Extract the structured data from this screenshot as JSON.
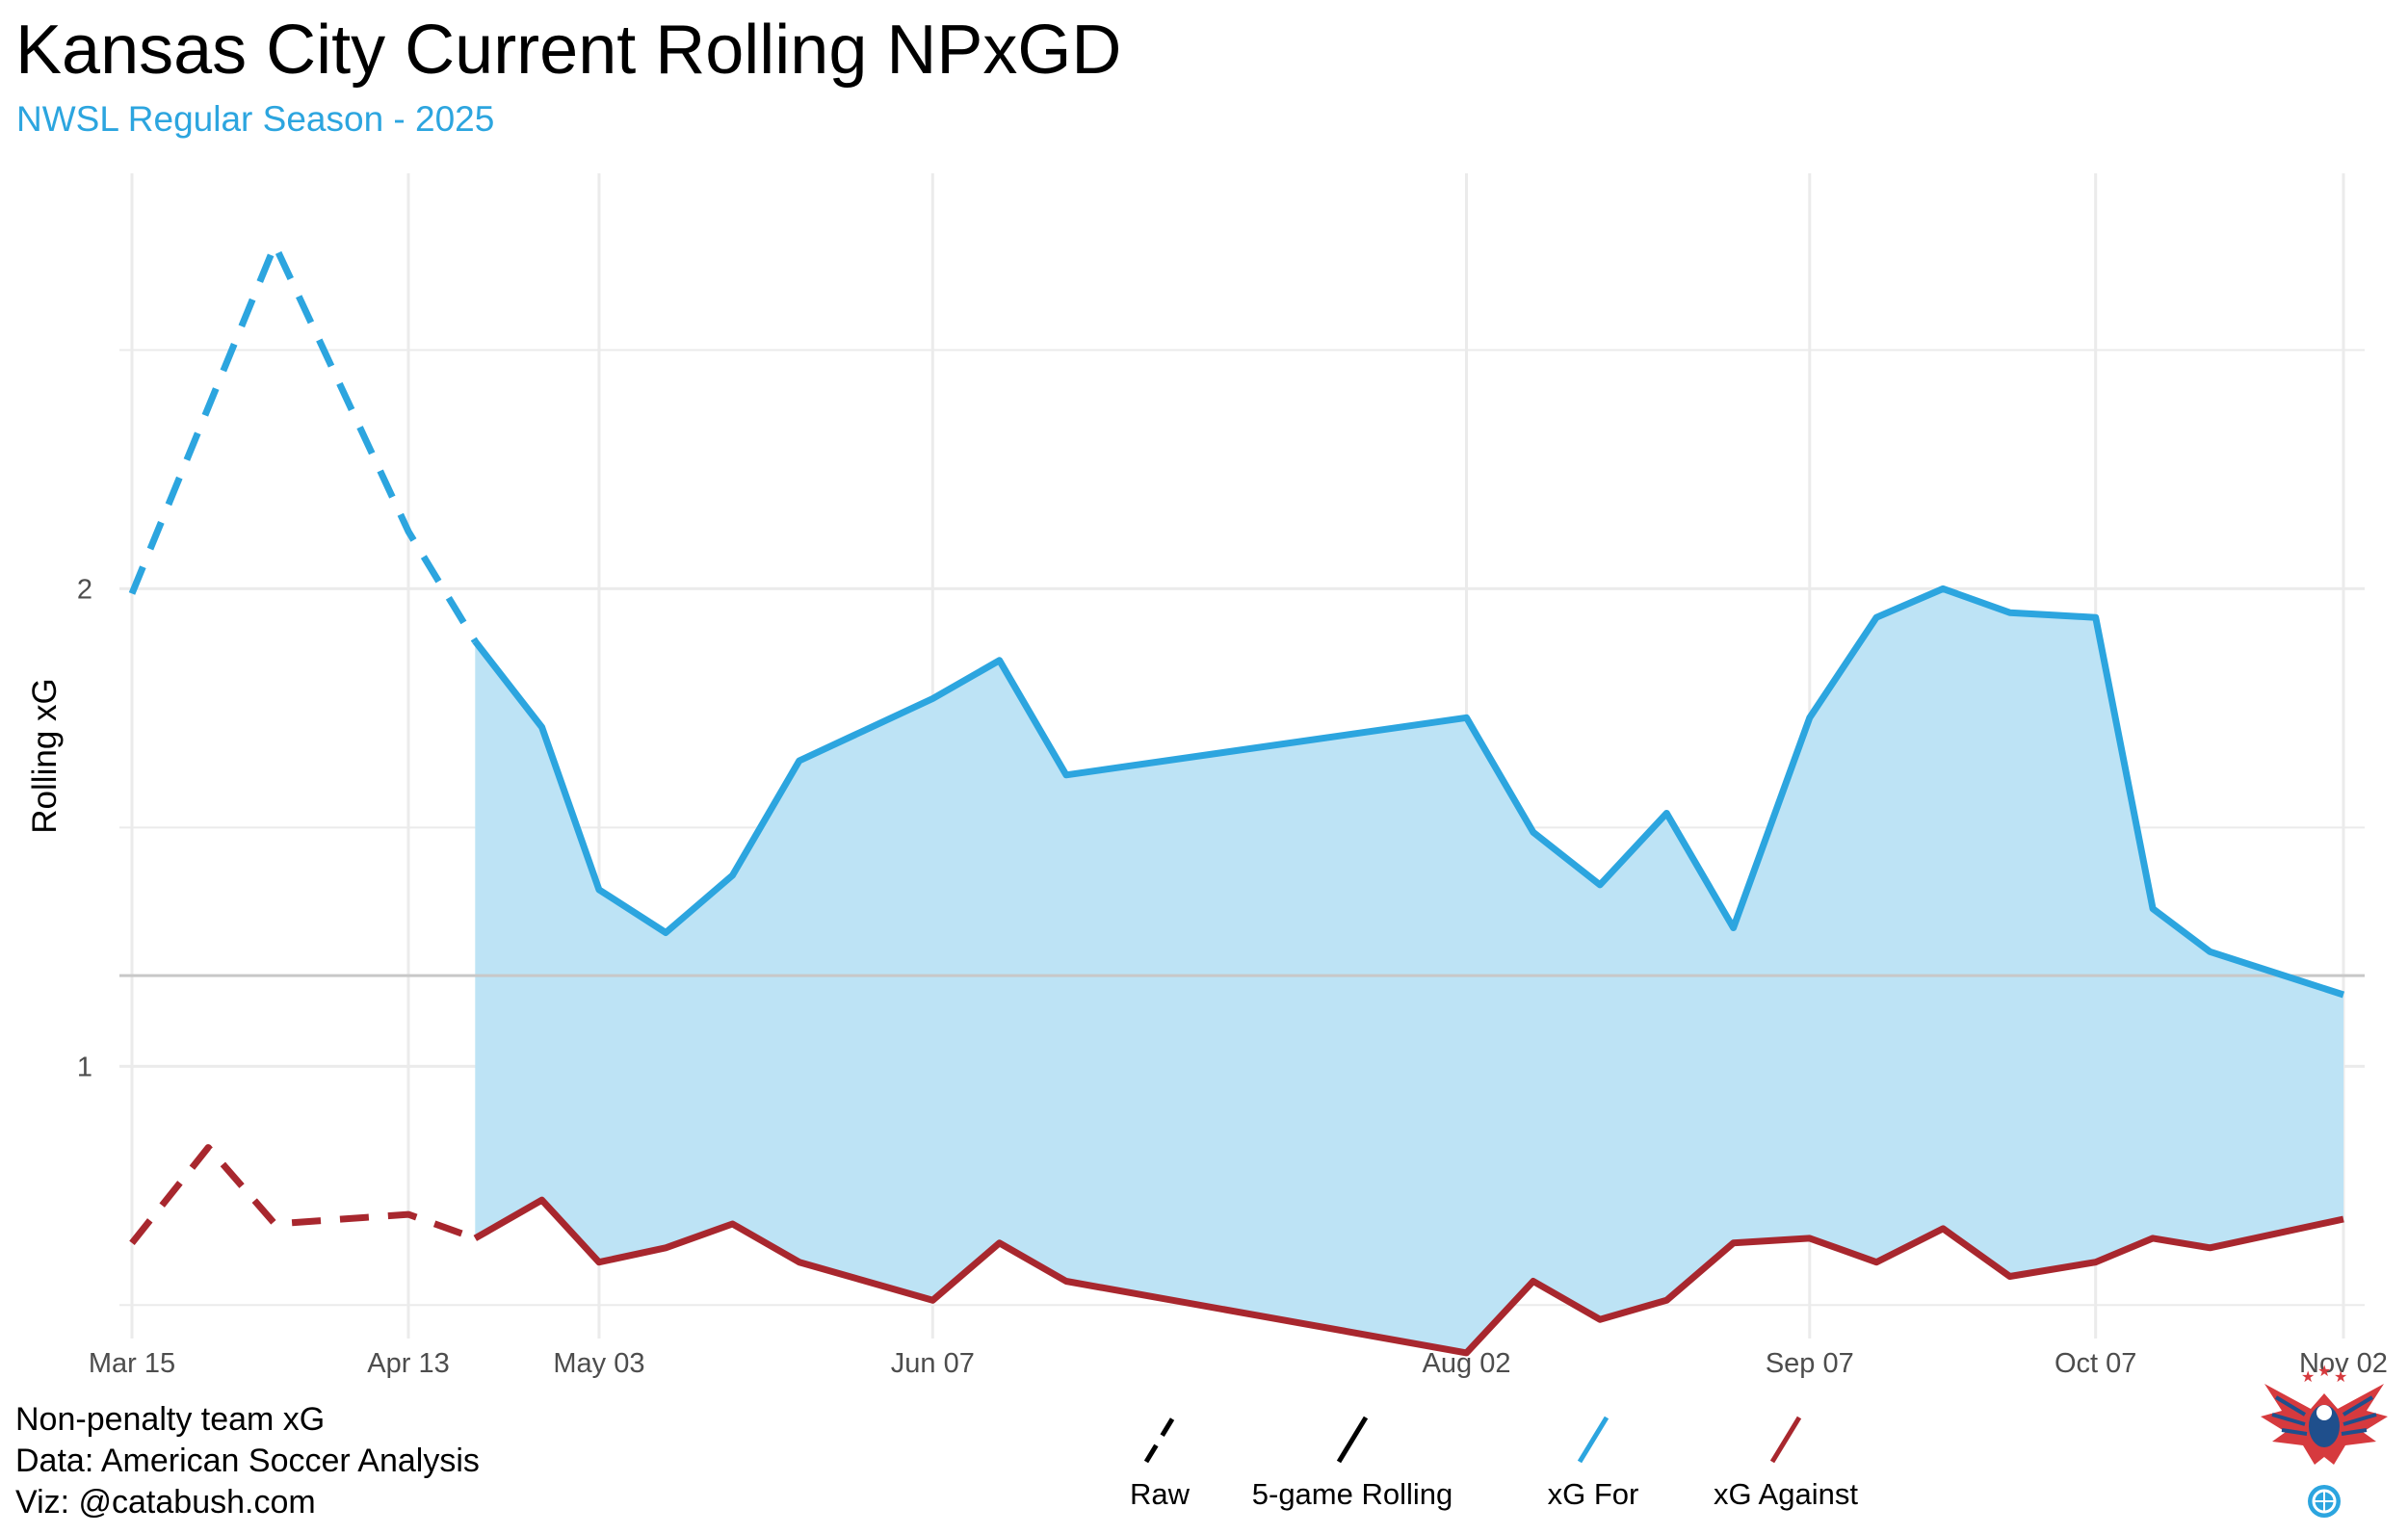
{
  "title": "Kansas City Current Rolling NPxGD",
  "subtitle": "NWSL Regular Season - 2025",
  "chart_data": {
    "type": "line",
    "title": "Kansas City Current Rolling NPxGD",
    "subtitle": "NWSL Regular Season - 2025",
    "xlabel": "",
    "ylabel": "Rolling xG",
    "ylim": [
      0.43,
      2.87
    ],
    "x_tick_labels": [
      "Mar 15",
      "Apr 13",
      "May 03",
      "Jun 07",
      "Aug 02",
      "Sep 07",
      "Oct 07",
      "Nov 02"
    ],
    "y_tick_labels": [
      "1",
      "2"
    ],
    "y_ticks": [
      1,
      2
    ],
    "y_minor_gridlines": [
      0.5,
      1.5,
      2.5
    ],
    "grid": true,
    "reference_line": 1.19,
    "x": [
      "2025-03-15",
      "2025-03-23",
      "2025-03-30",
      "2025-04-13",
      "2025-04-20",
      "2025-04-27",
      "2025-05-03",
      "2025-05-10",
      "2025-05-17",
      "2025-05-24",
      "2025-06-07",
      "2025-06-14",
      "2025-06-21",
      "2025-08-02",
      "2025-08-09",
      "2025-08-16",
      "2025-08-23",
      "2025-08-30",
      "2025-09-07",
      "2025-09-14",
      "2025-09-21",
      "2025-09-28",
      "2025-10-07",
      "2025-10-13",
      "2025-10-19",
      "2025-11-02"
    ],
    "series": [
      {
        "name": "xG For",
        "color": "#2ca5df",
        "values": [
          1.99,
          null,
          2.72,
          2.12,
          1.89,
          1.71,
          1.37,
          1.28,
          1.4,
          1.64,
          1.77,
          1.85,
          1.61,
          1.73,
          1.49,
          1.38,
          1.53,
          1.29,
          1.73,
          1.94,
          2.0,
          1.95,
          1.94,
          1.33,
          1.24,
          1.15
        ]
      },
      {
        "name": "xG Against",
        "color": "#a8272e",
        "values": [
          0.63,
          0.83,
          0.67,
          0.69,
          0.64,
          0.72,
          0.59,
          0.62,
          0.67,
          0.59,
          0.51,
          0.63,
          0.55,
          0.4,
          0.55,
          0.47,
          0.51,
          0.63,
          0.64,
          0.59,
          0.66,
          0.56,
          0.59,
          0.64,
          0.62,
          0.68
        ]
      }
    ],
    "rolling_start_index": 4,
    "fill_between": {
      "color": "#bde3f5",
      "from_index": 4
    },
    "legend": {
      "placement": "bottom",
      "entries": [
        {
          "label": "Raw",
          "style": "dashed",
          "color": "#000000"
        },
        {
          "label": "5-game Rolling",
          "style": "solid",
          "color": "#000000"
        },
        {
          "label": "xG For",
          "style": "solid",
          "color": "#2ca5df"
        },
        {
          "label": "xG Against",
          "style": "solid",
          "color": "#a8272e"
        }
      ]
    }
  },
  "caption": {
    "line1": "Non-penalty team xG",
    "line2": "Data: American Soccer Analysis",
    "line3": "Viz: @catabush.com"
  },
  "colors": {
    "accent": "#2ca5df",
    "against": "#a8272e",
    "fill": "#bde3f5",
    "grid": "#ebebeb",
    "reference": "#c8c8c8"
  },
  "logo": {
    "name": "eagle-soccer-logo-icon"
  }
}
